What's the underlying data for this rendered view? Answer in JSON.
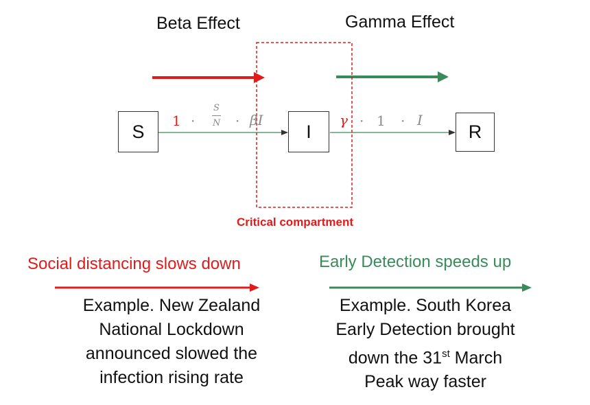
{
  "headers": {
    "beta": "Beta Effect",
    "gamma": "Gamma Effect"
  },
  "compartments": {
    "s": "S",
    "i": "I",
    "r": "R"
  },
  "flow_si": {
    "coef": "1",
    "dot": "·",
    "frac_num": "S",
    "frac_den": "N",
    "beta_i": "βI"
  },
  "flow_ir": {
    "gamma": "γ",
    "dot": "·",
    "one": "1",
    "i": "I"
  },
  "critical_label": "Critical compartment",
  "left_effect": "Social distancing slows down",
  "right_effect": "Early Detection speeds up",
  "left_example": {
    "line1": "Example. New Zealand",
    "line2": "National Lockdown",
    "line3": "announced slowed the",
    "line4": "infection rising rate"
  },
  "right_example": {
    "line1": "Example. South Korea",
    "line2": "Early Detection brought",
    "line3_pre": "down the 31",
    "line3_sup": "st",
    "line3_post": " March",
    "line4": "Peak way faster"
  },
  "colors": {
    "red": "#e11b1b",
    "green": "#3a8a5a",
    "frame": "#333333",
    "math_gray": "#8a8a8a"
  }
}
